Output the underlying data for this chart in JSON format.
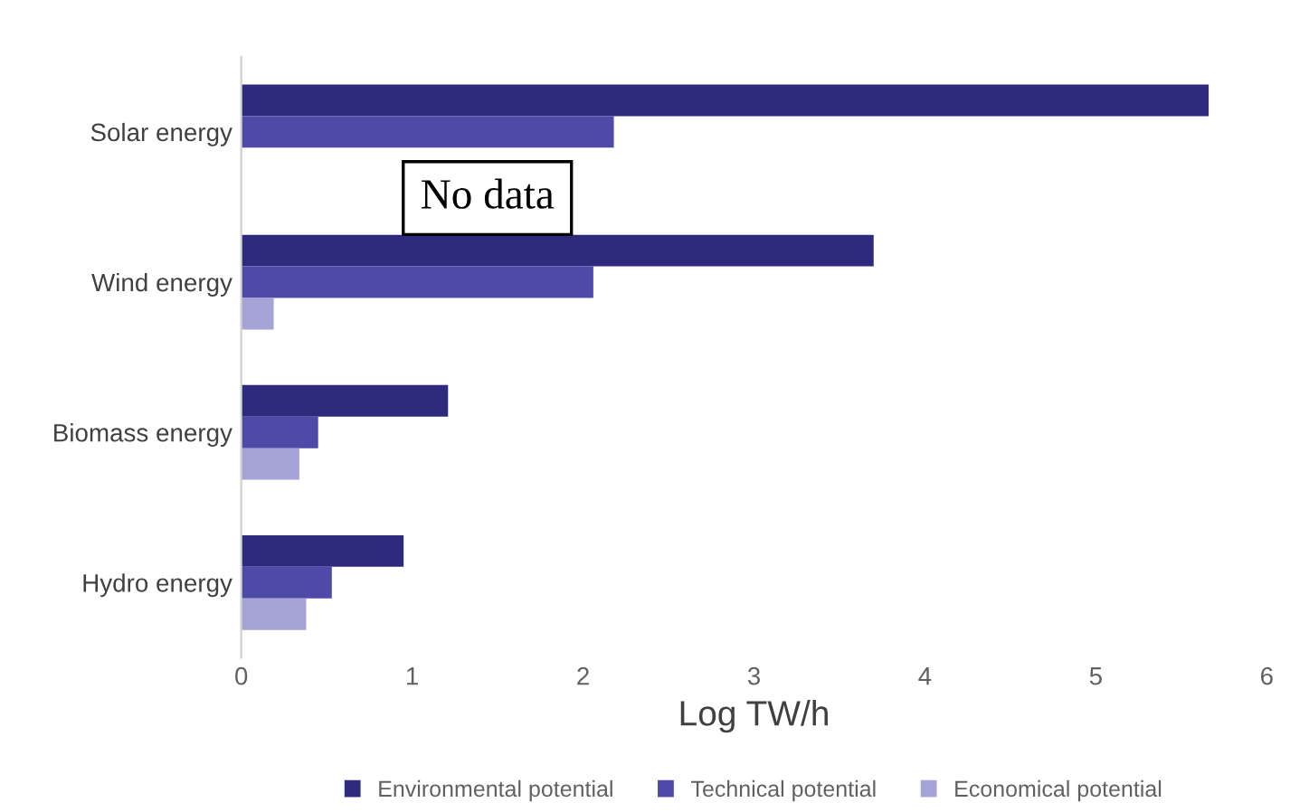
{
  "chart_data": {
    "type": "bar",
    "orientation": "horizontal",
    "categories": [
      "Solar energy",
      "Wind energy",
      "Biomass energy",
      "Hydro energy"
    ],
    "series": [
      {
        "name": "Environmental potential",
        "color": "#2e2a7e",
        "values": [
          5.66,
          3.7,
          1.21,
          0.95
        ]
      },
      {
        "name": "Technical potential",
        "color": "#4e4aa8",
        "values": [
          2.18,
          2.06,
          0.45,
          0.53
        ]
      },
      {
        "name": "Economical potential",
        "color": "#a6a3d6",
        "values": [
          null,
          0.19,
          0.34,
          0.38
        ]
      }
    ],
    "xlabel": "Log TW/h",
    "xlim": [
      0,
      6
    ],
    "xticks": [
      0,
      1,
      2,
      3,
      4,
      5,
      6
    ],
    "grid": false,
    "legend": "bottom",
    "annotations": [
      "No data"
    ]
  }
}
